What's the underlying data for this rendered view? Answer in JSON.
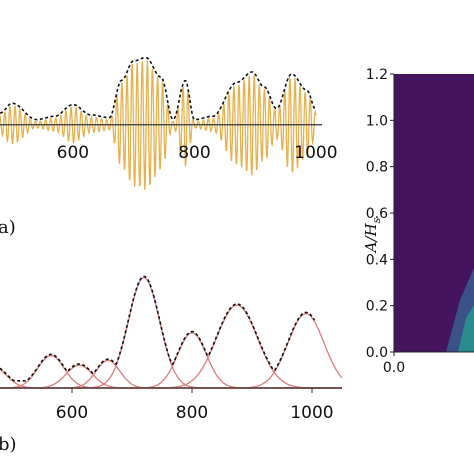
{
  "chart_data": [
    {
      "panel": "a",
      "panel_label": "a)",
      "type": "line",
      "x_ticks": [
        600,
        800,
        1000
      ],
      "xlim": [
        480,
        1010
      ],
      "ylim": [
        -1.0,
        1.3
      ],
      "colors": {
        "signal": "#e8b04a",
        "envelope": "#111111",
        "axis": "#333333"
      },
      "series": [
        {
          "style": "oscillating signal"
        },
        {
          "style": "dashed envelope"
        }
      ],
      "envelope_points": [
        [
          480,
          0.15
        ],
        [
          500,
          0.3
        ],
        [
          540,
          0.05
        ],
        [
          570,
          0.1
        ],
        [
          600,
          0.28
        ],
        [
          630,
          0.12
        ],
        [
          660,
          0.08
        ],
        [
          680,
          0.65
        ],
        [
          700,
          0.95
        ],
        [
          720,
          1.0
        ],
        [
          745,
          0.7
        ],
        [
          765,
          0.05
        ],
        [
          785,
          0.65
        ],
        [
          800,
          0.05
        ],
        [
          830,
          0.1
        ],
        [
          870,
          0.62
        ],
        [
          895,
          0.78
        ],
        [
          915,
          0.55
        ],
        [
          935,
          0.22
        ],
        [
          960,
          0.75
        ],
        [
          985,
          0.5
        ],
        [
          1000,
          0.2
        ]
      ]
    },
    {
      "panel": "b",
      "panel_label": "b)",
      "type": "line",
      "x_ticks": [
        600,
        800,
        1000
      ],
      "xlim": [
        480,
        1050
      ],
      "ylim": [
        0,
        1.0
      ],
      "colors": {
        "peaks": "#e07a78",
        "envelope": "#111111",
        "axis": "#333333"
      },
      "gaussians": [
        {
          "center": 468,
          "amp": 0.18,
          "width": 22
        },
        {
          "center": 565,
          "amp": 0.27,
          "width": 22
        },
        {
          "center": 612,
          "amp": 0.19,
          "width": 22
        },
        {
          "center": 660,
          "amp": 0.23,
          "width": 20
        },
        {
          "center": 720,
          "amp": 0.92,
          "width": 26
        },
        {
          "center": 800,
          "amp": 0.46,
          "width": 24
        },
        {
          "center": 875,
          "amp": 0.69,
          "width": 34
        },
        {
          "center": 990,
          "amp": 0.62,
          "width": 30
        }
      ]
    },
    {
      "panel": "c",
      "type": "heatmap",
      "ylabel": "A/H_s",
      "ylim": [
        0.0,
        1.2
      ],
      "y_ticks": [
        "0.0",
        "0.2",
        "0.4",
        "0.6",
        "0.8",
        "1.0",
        "1.2"
      ],
      "x_ticks": [
        "0.0"
      ],
      "colors": {
        "background": "#44145f",
        "contour1": "#3b5289",
        "contour2": "#2b8c8d"
      }
    }
  ]
}
